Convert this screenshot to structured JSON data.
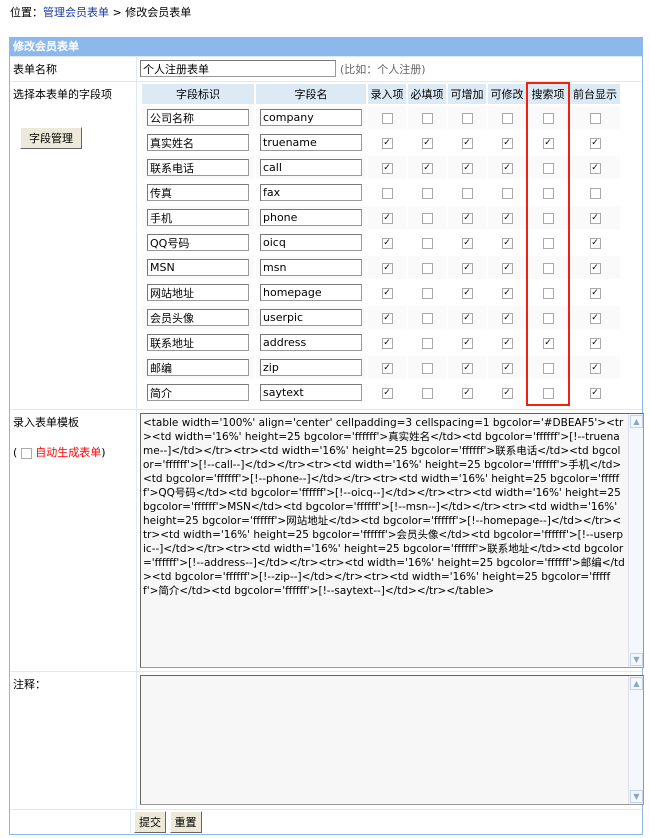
{
  "breadcrumb": {
    "prefix": "位置：",
    "link": "管理会员表单",
    "sep": " > ",
    "current": "修改会员表单"
  },
  "panel_title": "修改会员表单",
  "form_name": {
    "label": "表单名称",
    "value": "个人注册表单",
    "hint": "(比如：个人注册)"
  },
  "fields": {
    "label": "选择本表单的字段项",
    "manage_button": "字段管理",
    "headers": [
      "字段标识",
      "字段名",
      "录入项",
      "必填项",
      "可增加",
      "可修改",
      "搜索项",
      "前台显示"
    ],
    "rows": [
      {
        "title": "公司名称",
        "name": "company",
        "checks": [
          false,
          false,
          false,
          false,
          false,
          false
        ]
      },
      {
        "title": "真实姓名",
        "name": "truename",
        "checks": [
          true,
          true,
          true,
          true,
          true,
          true
        ]
      },
      {
        "title": "联系电话",
        "name": "call",
        "checks": [
          true,
          true,
          true,
          true,
          false,
          true
        ]
      },
      {
        "title": "传真",
        "name": "fax",
        "checks": [
          false,
          false,
          false,
          false,
          false,
          false
        ]
      },
      {
        "title": "手机",
        "name": "phone",
        "checks": [
          true,
          false,
          true,
          true,
          false,
          true
        ]
      },
      {
        "title": "QQ号码",
        "name": "oicq",
        "checks": [
          true,
          false,
          true,
          true,
          false,
          true
        ]
      },
      {
        "title": "MSN",
        "name": "msn",
        "checks": [
          true,
          false,
          true,
          true,
          false,
          true
        ]
      },
      {
        "title": "网站地址",
        "name": "homepage",
        "checks": [
          true,
          false,
          true,
          true,
          false,
          true
        ]
      },
      {
        "title": "会员头像",
        "name": "userpic",
        "checks": [
          true,
          false,
          true,
          true,
          false,
          true
        ]
      },
      {
        "title": "联系地址",
        "name": "address",
        "checks": [
          true,
          false,
          true,
          true,
          true,
          true
        ]
      },
      {
        "title": "邮编",
        "name": "zip",
        "checks": [
          true,
          false,
          true,
          true,
          false,
          true
        ]
      },
      {
        "title": "简介",
        "name": "saytext",
        "checks": [
          true,
          false,
          true,
          true,
          false,
          true
        ]
      }
    ]
  },
  "template": {
    "label": "录入表单模板",
    "auto_label": "自动生成表单",
    "auto_checked": false,
    "auto_color": "#ff0000",
    "value": "<table width='100%' align='center' cellpadding=3 cellspacing=1 bgcolor='#DBEAF5'><tr><td width='16%' height=25 bgcolor='ffffff'>真实姓名</td><td bgcolor='ffffff'>[!--truename--]</td></tr><tr><td width='16%' height=25 bgcolor='ffffff'>联系电话</td><td bgcolor='ffffff'>[!--call--]</td></tr><tr><td width='16%' height=25 bgcolor='ffffff'>手机</td><td bgcolor='ffffff'>[!--phone--]</td></tr><tr><td width='16%' height=25 bgcolor='ffffff'>QQ号码</td><td bgcolor='ffffff'>[!--oicq--]</td></tr><tr><td width='16%' height=25 bgcolor='ffffff'>MSN</td><td bgcolor='ffffff'>[!--msn--]</td></tr><tr><td width='16%' height=25 bgcolor='ffffff'>网站地址</td><td bgcolor='ffffff'>[!--homepage--]</td></tr><tr><td width='16%' height=25 bgcolor='ffffff'>会员头像</td><td bgcolor='ffffff'>[!--userpic--]</td></tr><tr><td width='16%' height=25 bgcolor='ffffff'>联系地址</td><td bgcolor='ffffff'>[!--address--]</td></tr><tr><td width='16%' height=25 bgcolor='ffffff'>邮编</td><td bgcolor='ffffff'>[!--zip--]</td></tr><tr><td width='16%' height=25 bgcolor='ffffff'>简介</td><td bgcolor='ffffff'>[!--saytext--]</td></tr></table>"
  },
  "notes": {
    "label": "注释：",
    "value": ""
  },
  "buttons": {
    "submit": "提交",
    "reset": "重置"
  },
  "colors": {
    "header": "#8db8ec",
    "border": "#dbeaf5",
    "highlight": "#ee2211"
  }
}
